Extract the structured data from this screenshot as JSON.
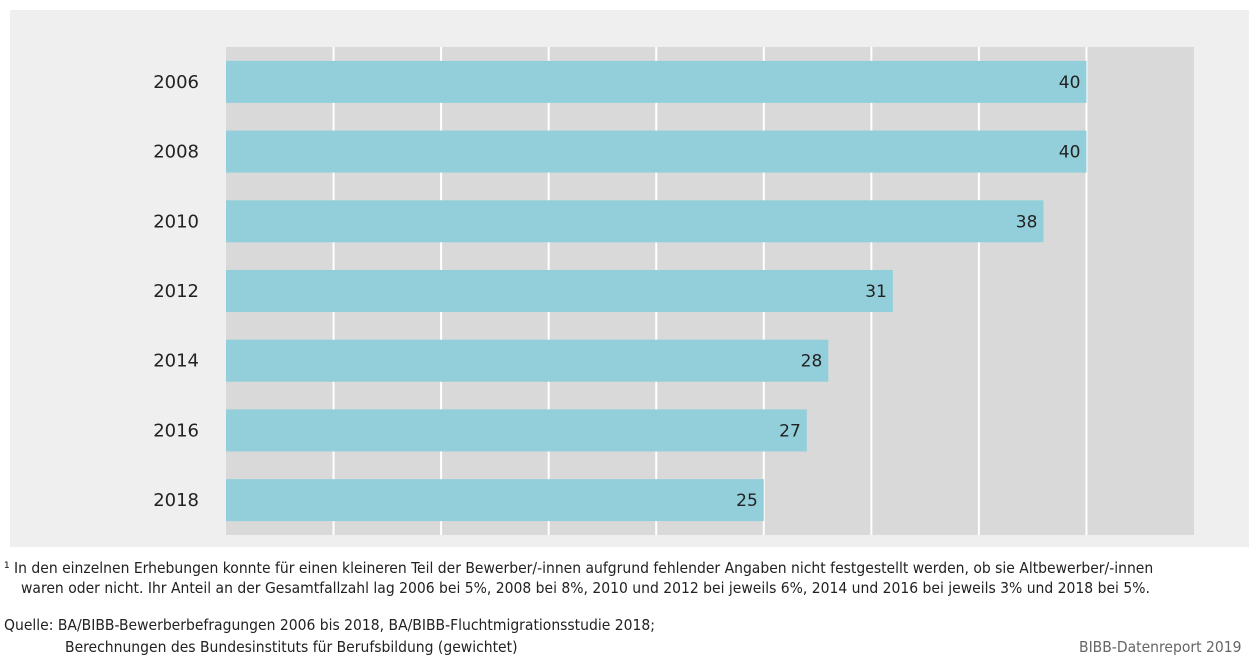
{
  "chart_data": {
    "type": "bar",
    "orientation": "horizontal",
    "categories": [
      "2006",
      "2008",
      "2010",
      "2012",
      "2014",
      "2016",
      "2018"
    ],
    "values": [
      40,
      40,
      38,
      31,
      28,
      27,
      25
    ],
    "data_labels": [
      "40",
      "40",
      "38",
      "31",
      "28",
      "27",
      "25"
    ],
    "xlim": [
      0,
      45
    ],
    "grid": true,
    "bar_color": "#93cfdb",
    "plot_bg_color": "#d9d9d9"
  },
  "footnote": {
    "line1": "¹ In den einzelnen Erhebungen konnte für einen kleineren Teil der Bewerber/-innen aufgrund fehlender Angaben nicht festgestellt werden, ob sie Altbewerber/-innen",
    "line2": "waren oder nicht. Ihr Anteil an der Gesamtfallzahl lag 2006 bei 5%, 2008 bei 8%, 2010 und 2012 bei jeweils 6%, 2014 und 2016 bei jeweils 3% und 2018 bei 5%."
  },
  "source": {
    "line1": "Quelle: BA/BIBB-Bewerberbefragungen 2006 bis 2018, BA/BIBB-Fluchtmigrationsstudie 2018;",
    "line2": "Berechnungen des Bundesinstituts für Berufsbildung (gewichtet)"
  },
  "credit": "BIBB-Datenreport 2019"
}
